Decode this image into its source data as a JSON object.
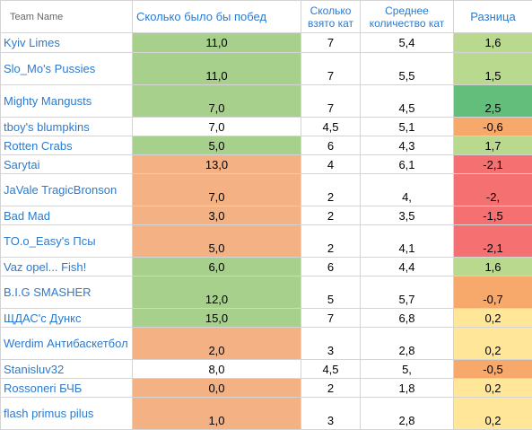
{
  "header": {
    "team_name": "Team Name",
    "wins": "Сколько было бы побед",
    "cats_taken": "Сколько взято кат",
    "avg_cats": "Среднее количество кат",
    "difference": "Разница"
  },
  "rows": [
    {
      "team": "Kyiv Limes",
      "wins": "11,0",
      "cats": "7",
      "avg": "5,4",
      "diff": "1,6",
      "wins_color": "green",
      "diff_color": "lgreen",
      "h": 22,
      "valign": "middle"
    },
    {
      "team": "Slo_Mo's Pussies",
      "wins": "11,0",
      "cats": "7",
      "avg": "5,5",
      "diff": "1,5",
      "wins_color": "green",
      "diff_color": "lgreen",
      "h": 36,
      "valign": "bottom"
    },
    {
      "team": "Mighty Mangusts",
      "wins": "7,0",
      "cats": "7",
      "avg": "4,5",
      "diff": "2,5",
      "wins_color": "green",
      "diff_color": "mgreen",
      "h": 36,
      "valign": "bottom"
    },
    {
      "team": "tboy's blumpkins",
      "wins": "7,0",
      "cats": "4,5",
      "avg": "5,1",
      "diff": "-0,6",
      "wins_color": "none",
      "diff_color": "orange",
      "h": 21,
      "valign": "middle"
    },
    {
      "team": "Rotten Crabs",
      "wins": "5,0",
      "cats": "6",
      "avg": "4,3",
      "diff": "1,7",
      "wins_color": "green",
      "diff_color": "lgreen",
      "h": 21,
      "valign": "middle"
    },
    {
      "team": "Sarytai",
      "wins": "13,0",
      "cats": "4",
      "avg": "6,1",
      "diff": "-2,1",
      "wins_color": "salmon",
      "diff_color": "red",
      "h": 21,
      "valign": "middle"
    },
    {
      "team": "JaVale TragicBronson",
      "wins": "7,0",
      "cats": "2",
      "avg": "4,",
      "diff": "-2,",
      "wins_color": "salmon",
      "diff_color": "red",
      "h": 36,
      "valign": "bottom"
    },
    {
      "team": "Bad Mad",
      "wins": "3,0",
      "cats": "2",
      "avg": "3,5",
      "diff": "-1,5",
      "wins_color": "salmon",
      "diff_color": "red",
      "h": 21,
      "valign": "middle"
    },
    {
      "team": "TO.o_Easy's Псы",
      "wins": "5,0",
      "cats": "2",
      "avg": "4,1",
      "diff": "-2,1",
      "wins_color": "salmon",
      "diff_color": "red",
      "h": 36,
      "valign": "bottom"
    },
    {
      "team": "Vaz opel... Fish!",
      "wins": "6,0",
      "cats": "6",
      "avg": "4,4",
      "diff": "1,6",
      "wins_color": "green",
      "diff_color": "lgreen",
      "h": 21,
      "valign": "middle"
    },
    {
      "team": "B.I.G SMASHER",
      "wins": "12,0",
      "cats": "5",
      "avg": "5,7",
      "diff": "-0,7",
      "wins_color": "green",
      "diff_color": "orange",
      "h": 36,
      "valign": "bottom"
    },
    {
      "team": "ЩДАС'с Дункс",
      "wins": "15,0",
      "cats": "7",
      "avg": "6,8",
      "diff": "0,2",
      "wins_color": "green",
      "diff_color": "yellow",
      "h": 21,
      "valign": "middle"
    },
    {
      "team": "Werdim Антибаскетбол",
      "wins": "2,0",
      "cats": "3",
      "avg": "2,8",
      "diff": "0,2",
      "wins_color": "salmon",
      "diff_color": "yellow",
      "h": 36,
      "valign": "bottom"
    },
    {
      "team": "Stanisluv32",
      "wins": "8,0",
      "cats": "4,5",
      "avg": "5,",
      "diff": "-0,5",
      "wins_color": "none",
      "diff_color": "orange",
      "h": 21,
      "valign": "middle"
    },
    {
      "team": "Rossoneri БЧБ",
      "wins": "0,0",
      "cats": "2",
      "avg": "1,8",
      "diff": "0,2",
      "wins_color": "salmon",
      "diff_color": "yellow",
      "h": 21,
      "valign": "middle"
    },
    {
      "team": "flash primus pilus",
      "wins": "1,0",
      "cats": "3",
      "avg": "2,8",
      "diff": "0,2",
      "wins_color": "salmon",
      "diff_color": "yellow",
      "h": 36,
      "valign": "bottom"
    }
  ]
}
